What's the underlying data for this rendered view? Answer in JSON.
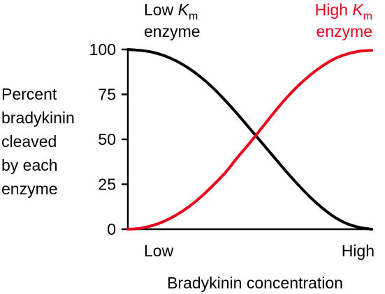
{
  "chart_data": {
    "type": "line",
    "xlabel": "Bradykinin concentration",
    "ylabel": [
      "Percent",
      "bradykinin",
      "cleaved",
      "by each",
      "enzyme"
    ],
    "x_tick_labels": [
      "Low",
      "High"
    ],
    "x": [
      0,
      0.05,
      0.1,
      0.15,
      0.2,
      0.25,
      0.3,
      0.35,
      0.4,
      0.45,
      0.5,
      0.55,
      0.6,
      0.65,
      0.7,
      0.75,
      0.8,
      0.85,
      0.9,
      0.95,
      1.0
    ],
    "xlim": [
      0,
      1
    ],
    "yticks": [
      0,
      25,
      50,
      75,
      100
    ],
    "ylim": [
      0,
      100
    ],
    "grid": false,
    "legend": "none",
    "series": [
      {
        "name_prefix": "Low",
        "name_var": "K",
        "name_sub": "m",
        "name_line2": "enzyme",
        "color": "#000000",
        "values": [
          100,
          99.5,
          98.5,
          96.5,
          93.5,
          89.5,
          84.5,
          78.5,
          71.5,
          64,
          56,
          48,
          40,
          32,
          24.5,
          17.5,
          11.5,
          6.5,
          3,
          1,
          0
        ]
      },
      {
        "name_prefix": "High",
        "name_var": "K",
        "name_sub": "m",
        "name_line2": "enzyme",
        "color": "#e8001c",
        "values": [
          0,
          0.5,
          2,
          4.5,
          8,
          12.5,
          18,
          24.5,
          31.5,
          40,
          48,
          56.5,
          65,
          73,
          80,
          86,
          91,
          95,
          97.5,
          99,
          99.5
        ]
      }
    ]
  }
}
